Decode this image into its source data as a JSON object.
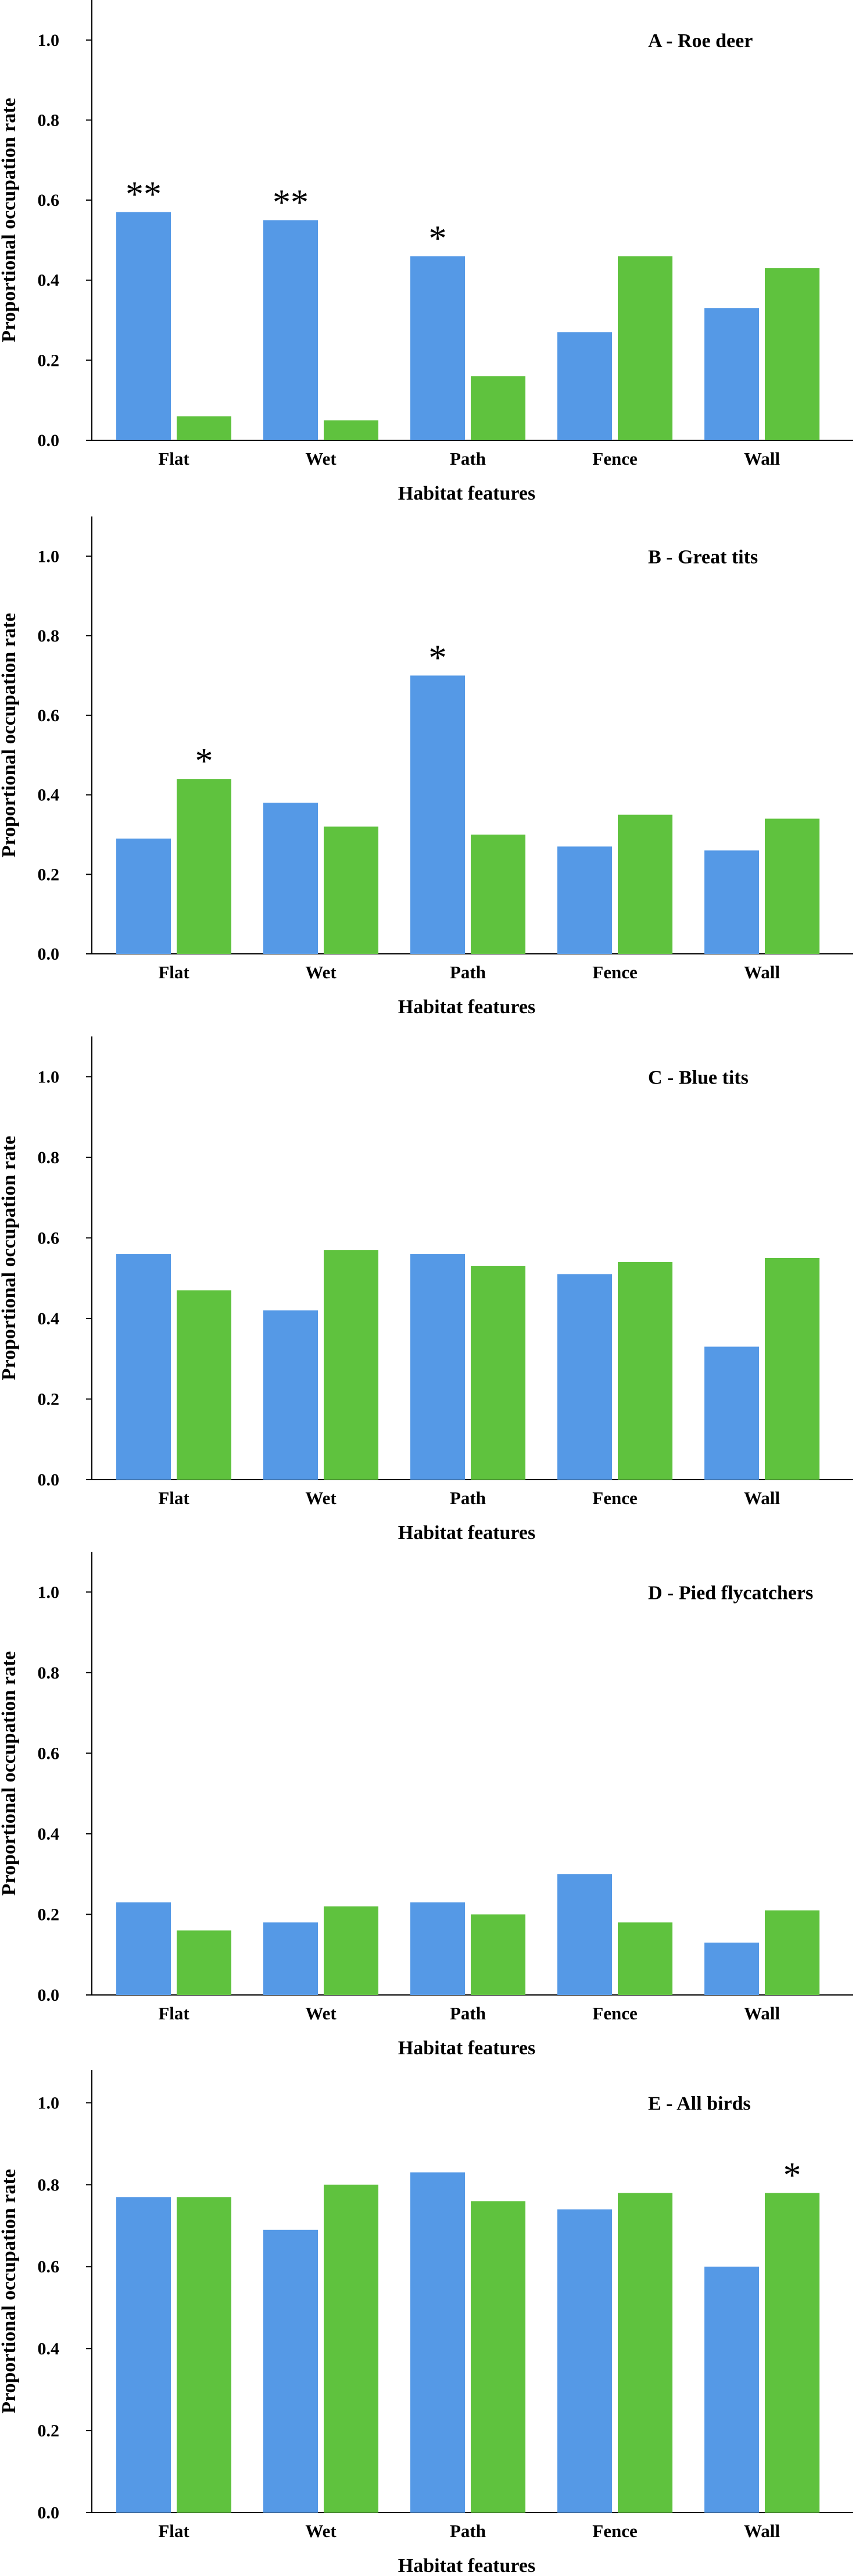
{
  "colors": {
    "series_a": "#5599e6",
    "series_b": "#5fc23e",
    "axis": "#000000"
  },
  "chart_data": [
    {
      "type": "bar",
      "title": "A - Roe deer",
      "xlabel": "Habitat features",
      "ylabel": "Proportional occupation rate",
      "categories": [
        "Flat",
        "Wet",
        "Path",
        "Fence",
        "Wall"
      ],
      "y_ticks": [
        "0.0",
        "0.2",
        "0.4",
        "0.6",
        "0.8",
        "1.0"
      ],
      "ylim": [
        0,
        1.1
      ],
      "grid": false,
      "series": [
        {
          "values": [
            0.57,
            0.55,
            0.46,
            0.27,
            0.33
          ]
        },
        {
          "values": [
            0.06,
            0.05,
            0.16,
            0.46,
            0.43
          ]
        }
      ],
      "annotations": [
        "**",
        "**",
        "*",
        "",
        ""
      ]
    },
    {
      "type": "bar",
      "title": "B - Great tits",
      "xlabel": "Habitat features",
      "ylabel": "Proportional occupation rate",
      "categories": [
        "Flat",
        "Wet",
        "Path",
        "Fence",
        "Wall"
      ],
      "y_ticks": [
        "0.0",
        "0.2",
        "0.4",
        "0.6",
        "0.8",
        "1.0"
      ],
      "ylim": [
        0,
        1.1
      ],
      "grid": false,
      "series": [
        {
          "values": [
            0.29,
            0.38,
            0.7,
            0.27,
            0.26
          ]
        },
        {
          "values": [
            0.44,
            0.32,
            0.3,
            0.35,
            0.34
          ]
        }
      ],
      "annotations": [
        "*",
        "",
        "*",
        "",
        ""
      ]
    },
    {
      "type": "bar",
      "title": "C - Blue tits",
      "xlabel": "Habitat features",
      "ylabel": "Proportional occupation rate",
      "categories": [
        "Flat",
        "Wet",
        "Path",
        "Fence",
        "Wall"
      ],
      "y_ticks": [
        "0.0",
        "0.2",
        "0.4",
        "0.6",
        "0.8",
        "1.0"
      ],
      "ylim": [
        0,
        1.1
      ],
      "grid": false,
      "series": [
        {
          "values": [
            0.56,
            0.42,
            0.56,
            0.51,
            0.33
          ]
        },
        {
          "values": [
            0.47,
            0.57,
            0.53,
            0.54,
            0.55
          ]
        }
      ],
      "annotations": [
        "",
        "",
        "",
        "",
        ""
      ]
    },
    {
      "type": "bar",
      "title": "D - Pied flycatchers",
      "xlabel": "Habitat features",
      "ylabel": "Proportional occupation rate",
      "categories": [
        "Flat",
        "Wet",
        "Path",
        "Fence",
        "Wall"
      ],
      "y_ticks": [
        "0.0",
        "0.2",
        "0.4",
        "0.6",
        "0.8",
        "1.0"
      ],
      "ylim": [
        0,
        1.1
      ],
      "grid": false,
      "series": [
        {
          "values": [
            0.23,
            0.18,
            0.23,
            0.3,
            0.13
          ]
        },
        {
          "values": [
            0.16,
            0.22,
            0.2,
            0.18,
            0.21
          ]
        }
      ],
      "annotations": [
        "",
        "",
        "",
        "",
        ""
      ]
    },
    {
      "type": "bar",
      "title": "E - All birds",
      "xlabel": "Habitat features",
      "ylabel": "Proportional occupation rate",
      "categories": [
        "Flat",
        "Wet",
        "Path",
        "Fence",
        "Wall"
      ],
      "y_ticks": [
        "0.0",
        "0.2",
        "0.4",
        "0.6",
        "0.8",
        "1.0"
      ],
      "ylim": [
        0,
        1.08
      ],
      "grid": false,
      "series": [
        {
          "values": [
            0.77,
            0.69,
            0.83,
            0.74,
            0.6
          ]
        },
        {
          "values": [
            0.77,
            0.8,
            0.76,
            0.78,
            0.78
          ]
        }
      ],
      "annotations": [
        "",
        "",
        "",
        "",
        "*"
      ]
    }
  ]
}
